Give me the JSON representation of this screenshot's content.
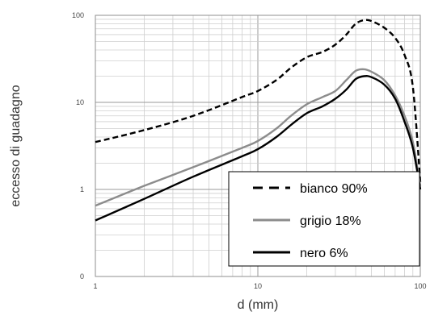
{
  "chart_data": {
    "type": "line",
    "xlabel": "d (mm)",
    "ylabel": "eccesso di guadagno",
    "x_scale": "log",
    "y_scale": "log",
    "xlim": [
      1,
      100
    ],
    "ylim": [
      0.1,
      100
    ],
    "grid": true,
    "legend_position": "bottom-right",
    "x_ticks": [
      {
        "value": 1,
        "label": "1"
      },
      {
        "value": 10,
        "label": "10"
      },
      {
        "value": 100,
        "label": "100"
      }
    ],
    "y_ticks": [
      {
        "value": 0.1,
        "label": "0"
      },
      {
        "value": 1,
        "label": "1"
      },
      {
        "value": 10,
        "label": "10"
      },
      {
        "value": 100,
        "label": "100"
      }
    ],
    "series": [
      {
        "name": "bianco 90%",
        "color": "#000000",
        "dash": "dashed",
        "points": [
          [
            1,
            3.5
          ],
          [
            2,
            4.8
          ],
          [
            4,
            7.0
          ],
          [
            8,
            11.5
          ],
          [
            10,
            13.5
          ],
          [
            13,
            18
          ],
          [
            16,
            25
          ],
          [
            20,
            33
          ],
          [
            25,
            38
          ],
          [
            30,
            46
          ],
          [
            35,
            60
          ],
          [
            40,
            80
          ],
          [
            45,
            88
          ],
          [
            50,
            86
          ],
          [
            60,
            72
          ],
          [
            70,
            55
          ],
          [
            80,
            35
          ],
          [
            90,
            15
          ],
          [
            100,
            1.2
          ]
        ]
      },
      {
        "name": "grigio 18%",
        "color": "#8c8c8c",
        "dash": "solid",
        "points": [
          [
            1,
            0.65
          ],
          [
            2,
            1.1
          ],
          [
            4,
            1.8
          ],
          [
            8,
            3.0
          ],
          [
            10,
            3.6
          ],
          [
            13,
            5.0
          ],
          [
            16,
            7.0
          ],
          [
            20,
            9.5
          ],
          [
            25,
            11.5
          ],
          [
            30,
            13.5
          ],
          [
            35,
            18
          ],
          [
            40,
            23
          ],
          [
            45,
            24
          ],
          [
            50,
            22.5
          ],
          [
            60,
            18
          ],
          [
            70,
            12
          ],
          [
            80,
            7
          ],
          [
            90,
            3.5
          ],
          [
            100,
            1.1
          ]
        ]
      },
      {
        "name": "nero 6%",
        "color": "#000000",
        "dash": "solid",
        "points": [
          [
            1,
            0.44
          ],
          [
            2,
            0.78
          ],
          [
            4,
            1.4
          ],
          [
            8,
            2.4
          ],
          [
            10,
            2.9
          ],
          [
            13,
            4.0
          ],
          [
            16,
            5.5
          ],
          [
            20,
            7.5
          ],
          [
            25,
            9.0
          ],
          [
            30,
            11
          ],
          [
            35,
            14
          ],
          [
            40,
            18.5
          ],
          [
            45,
            20
          ],
          [
            50,
            19.5
          ],
          [
            60,
            16
          ],
          [
            70,
            11
          ],
          [
            80,
            6
          ],
          [
            90,
            3.0
          ],
          [
            100,
            1.0
          ]
        ]
      }
    ]
  }
}
